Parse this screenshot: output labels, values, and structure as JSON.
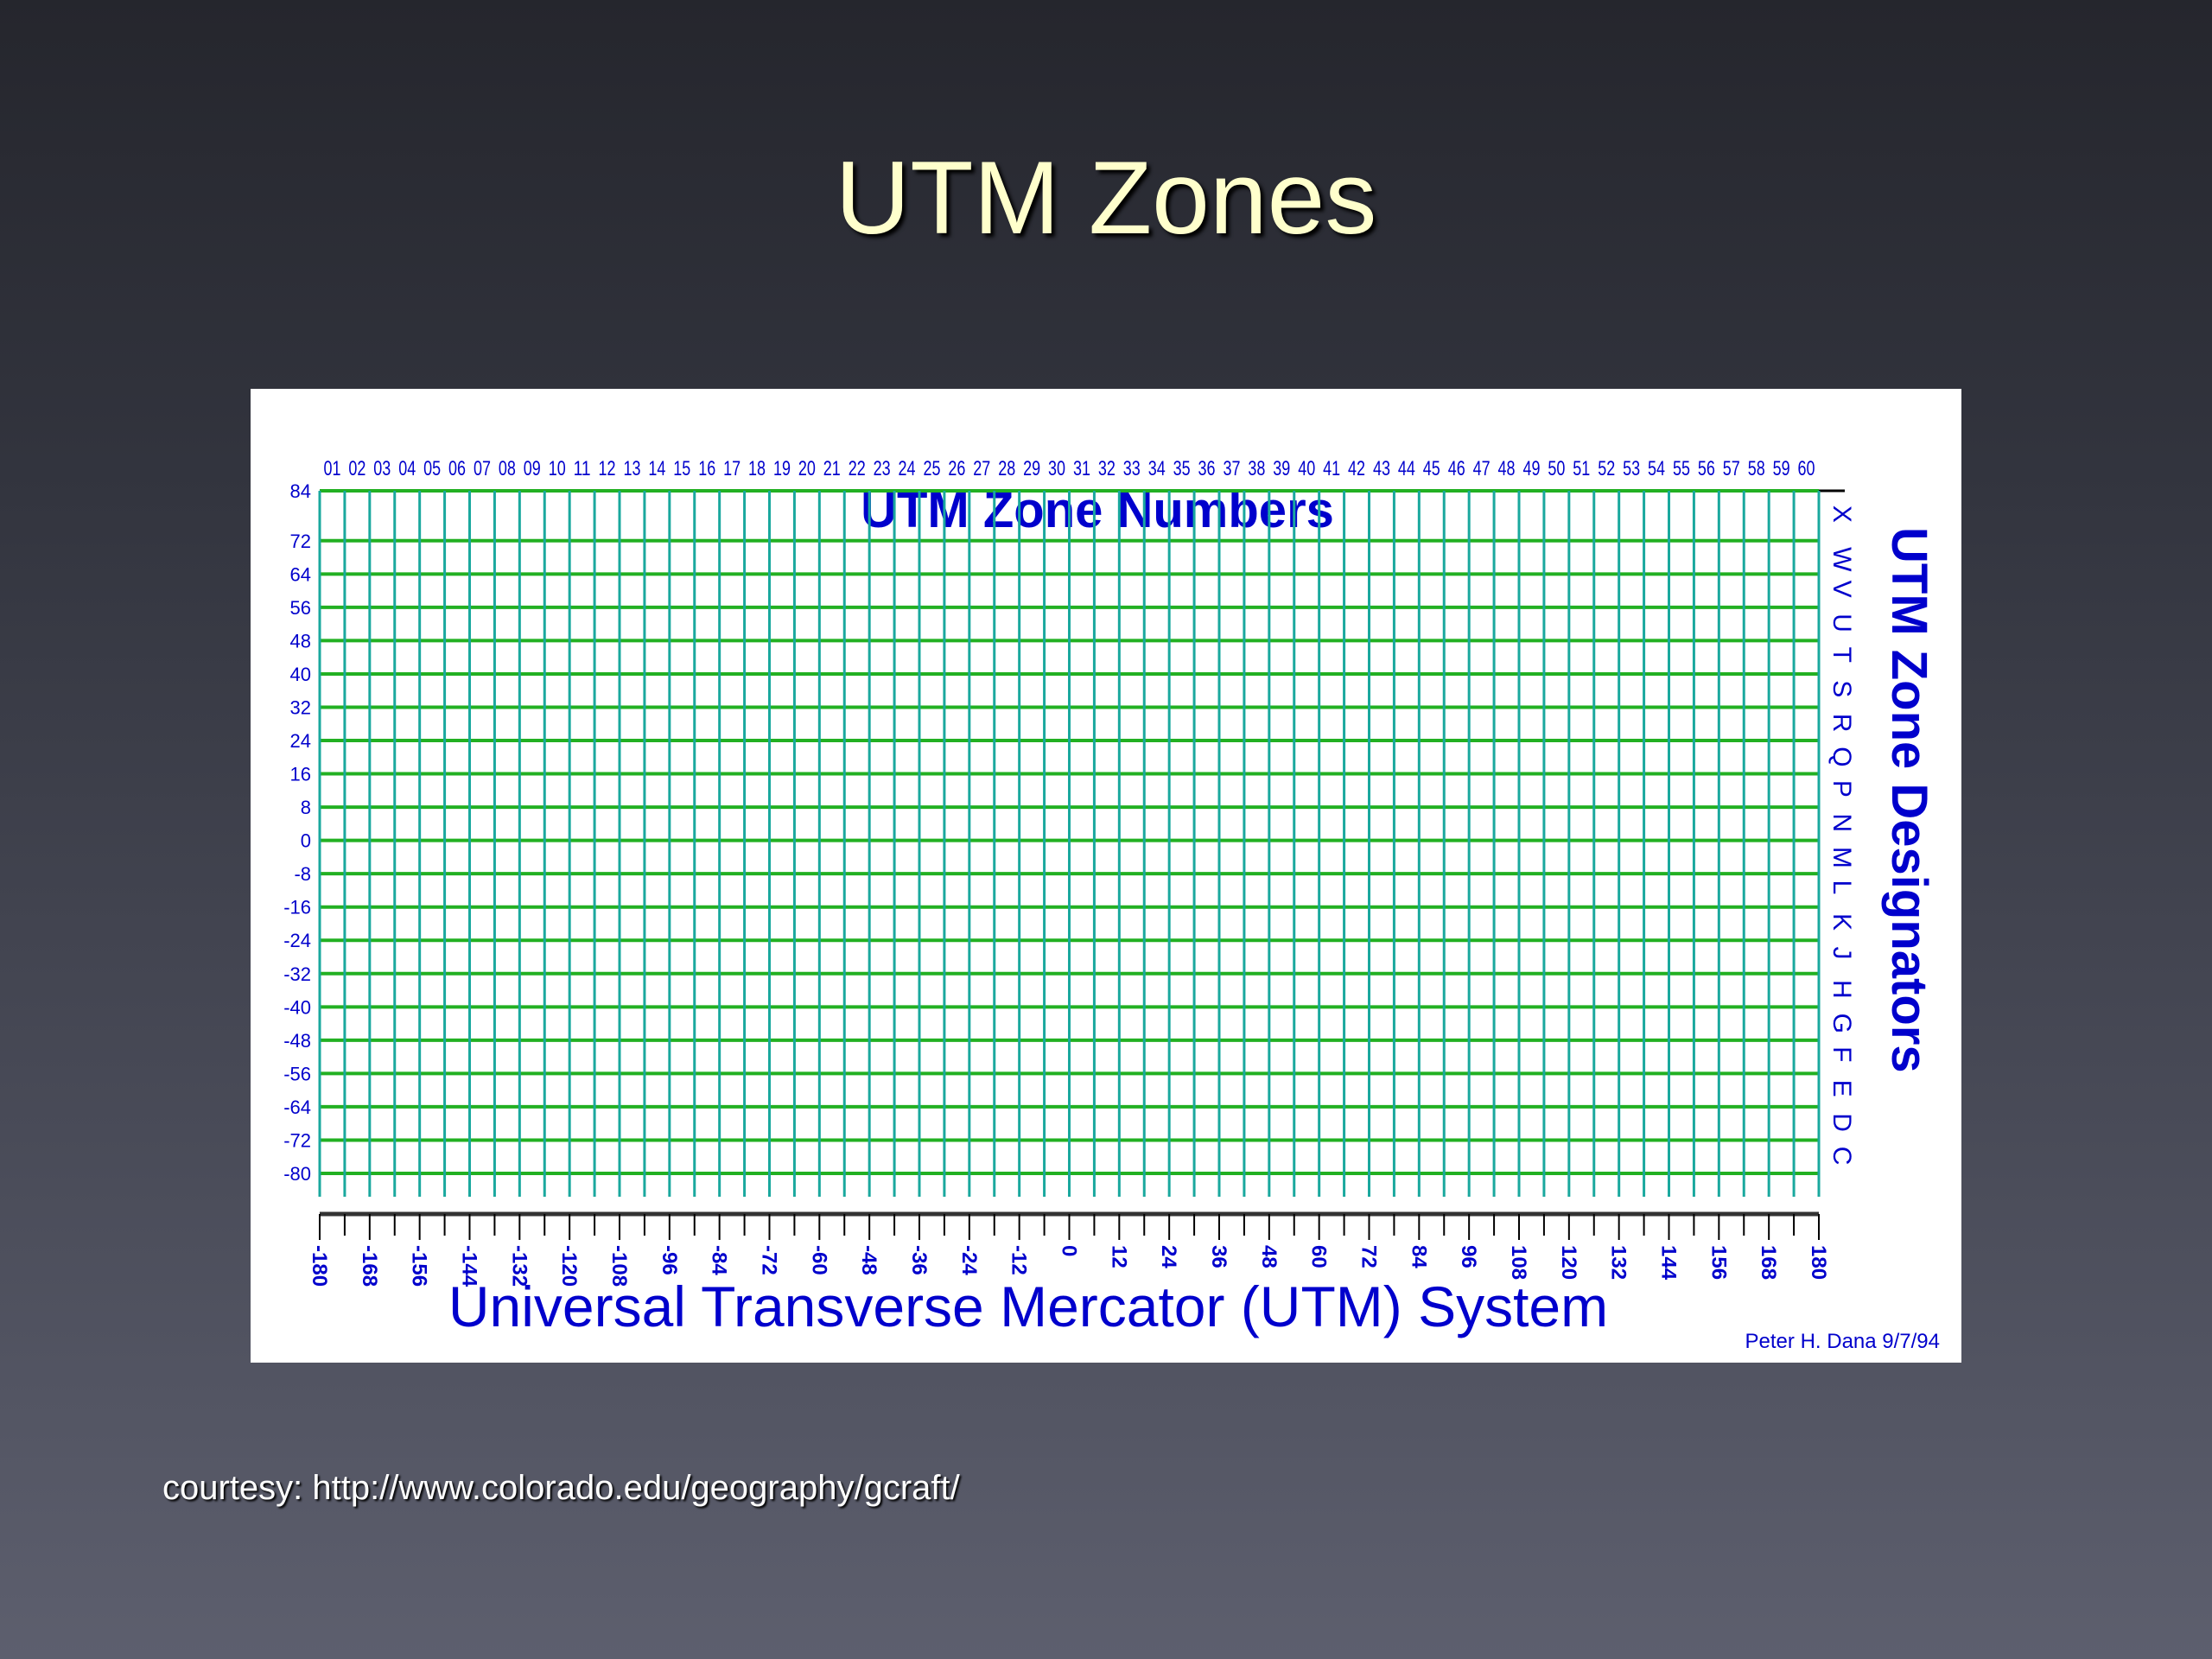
{
  "slide": {
    "title": "UTM Zones",
    "courtesy": "courtesy: http://www.colorado.edu/geography/gcraft/"
  },
  "figure": {
    "top_title": "UTM Zone Numbers",
    "bottom_title": "Universal Transverse Mercator (UTM) System",
    "side_title": "UTM Zone Designators",
    "credit": "Peter H. Dana 9/7/94",
    "zone_numbers": [
      "01",
      "02",
      "03",
      "04",
      "05",
      "06",
      "07",
      "08",
      "09",
      "10",
      "11",
      "12",
      "13",
      "14",
      "15",
      "16",
      "17",
      "18",
      "19",
      "20",
      "21",
      "22",
      "23",
      "24",
      "25",
      "26",
      "27",
      "28",
      "29",
      "30",
      "31",
      "32",
      "33",
      "34",
      "35",
      "36",
      "37",
      "38",
      "39",
      "40",
      "41",
      "42",
      "43",
      "44",
      "45",
      "46",
      "47",
      "48",
      "49",
      "50",
      "51",
      "52",
      "53",
      "54",
      "55",
      "56",
      "57",
      "58",
      "59",
      "60"
    ],
    "latitude_labels": [
      "84",
      "72",
      "64",
      "56",
      "48",
      "40",
      "32",
      "24",
      "16",
      "8",
      "0",
      "-8",
      "-16",
      "-24",
      "-32",
      "-40",
      "-48",
      "-56",
      "-64",
      "-72",
      "-80"
    ],
    "longitude_labels": [
      "-180",
      "-168",
      "-156",
      "-144",
      "-132",
      "-120",
      "-108",
      "-96",
      "-84",
      "-72",
      "-60",
      "-48",
      "-36",
      "-24",
      "-12",
      "0",
      "12",
      "24",
      "36",
      "48",
      "60",
      "72",
      "84",
      "96",
      "108",
      "120",
      "132",
      "144",
      "156",
      "168",
      "180"
    ],
    "designators": [
      "X",
      "W",
      "V",
      "U",
      "T",
      "S",
      "R",
      "Q",
      "P",
      "N",
      "M",
      "L",
      "K",
      "J",
      "H",
      "G",
      "F",
      "E",
      "D",
      "C"
    ],
    "colors": {
      "label_blue": "#0000cc",
      "meridian_lines": "#1aa89e",
      "parallel_lines": "#22b022"
    }
  }
}
